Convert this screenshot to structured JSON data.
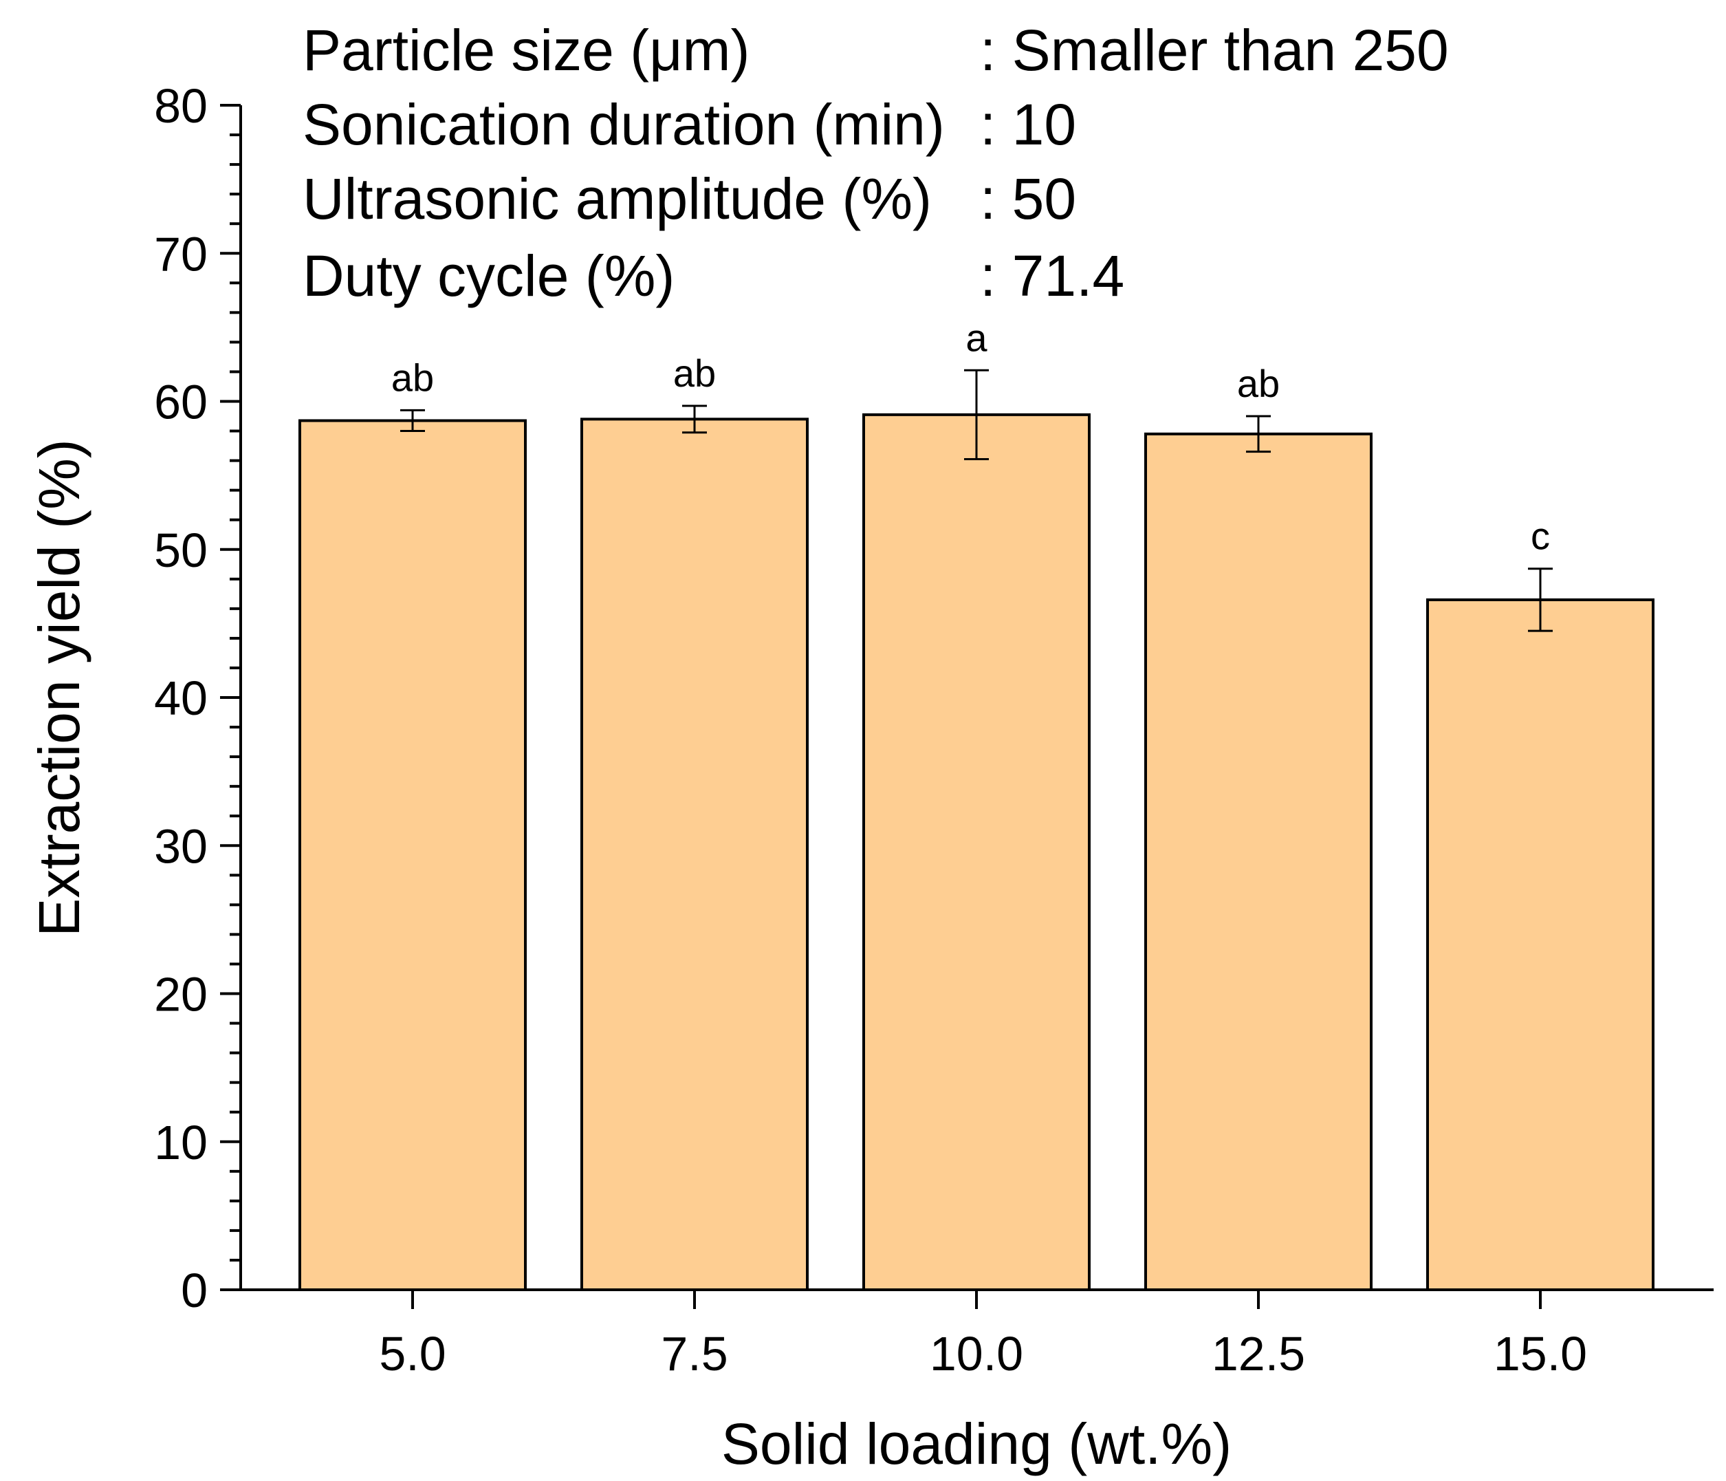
{
  "chart_data": {
    "type": "bar",
    "categories": [
      "5.0",
      "7.5",
      "10.0",
      "12.5",
      "15.0"
    ],
    "values": [
      58.7,
      58.8,
      59.1,
      57.8,
      46.6
    ],
    "errors": [
      0.7,
      0.9,
      3.0,
      1.2,
      2.1
    ],
    "significance": [
      "ab",
      "ab",
      "a",
      "ab",
      "c"
    ],
    "xlabel": "Solid loading (wt.%)",
    "ylabel": "Extraction yield (%)",
    "ylim": [
      0,
      80
    ],
    "yticks": [
      0,
      10,
      20,
      30,
      40,
      50,
      60,
      70,
      80
    ],
    "grid": false,
    "bar_color": "#FECE92",
    "edge_color": "#000000",
    "conditions": [
      {
        "label": "Particle size (μm)",
        "value": ": Smaller than 250"
      },
      {
        "label": "Sonication duration (min)",
        "value": ": 10"
      },
      {
        "label": "Ultrasonic amplitude (%)",
        "value": ": 50"
      },
      {
        "label": "Duty cycle (%)",
        "value": ": 71.4"
      }
    ]
  }
}
